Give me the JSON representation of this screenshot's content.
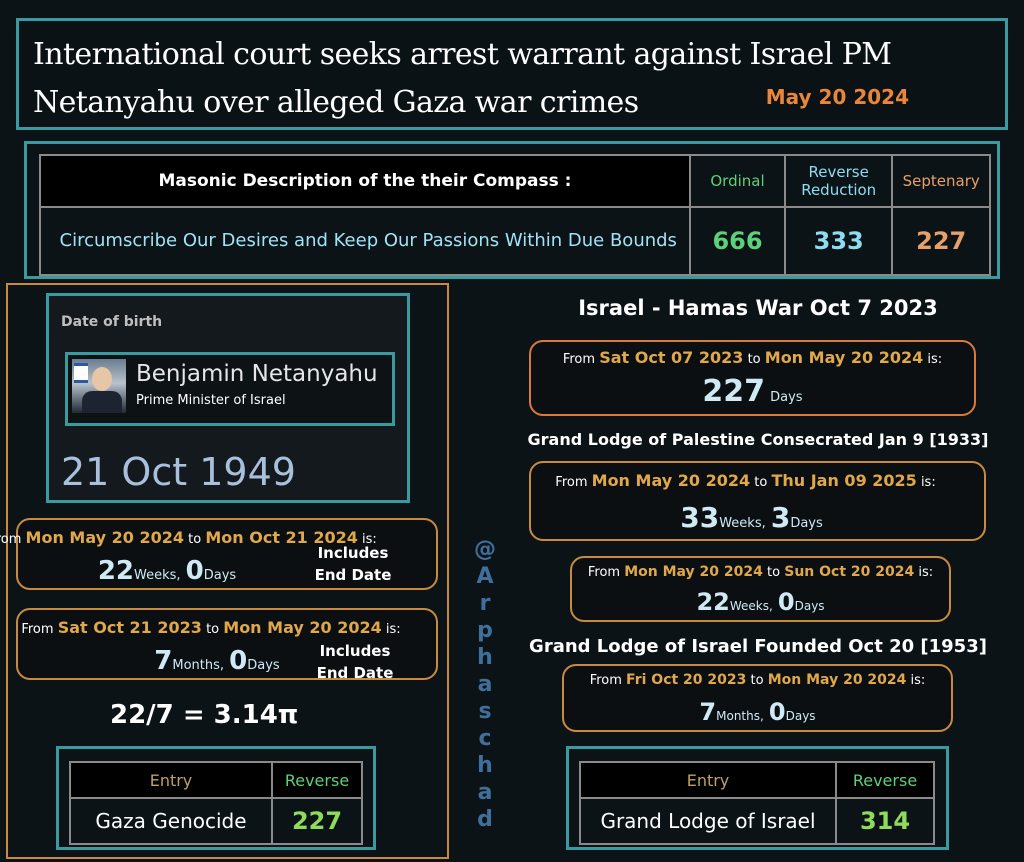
{
  "headline": {
    "title": "International court seeks arrest warrant against Israel PM Netanyahu over alleged Gaza war crimes",
    "date": "May 20 2024"
  },
  "masonic": {
    "heading": "Masonic Description of the their Compass :",
    "col_ordinal": "Ordinal",
    "col_reverse": "Reverse Reduction",
    "col_septenary": "Septenary",
    "phrase": "Circumscribe Our Desires and Keep Our Passions Within Due Bounds",
    "ordinal": "666",
    "reverse": "333",
    "septenary": "227"
  },
  "dob": {
    "label": "Date of birth",
    "name": "Benjamin Netanyahu",
    "role": "Prime Minister of Israel",
    "date": "21 Oct 1949"
  },
  "left_calcs": [
    {
      "from": "From",
      "d1": "Mon May 20 2024",
      "to": "to",
      "d2": "Mon Oct 21 2024",
      "is": "is:",
      "n1": "22",
      "u1": "Weeks,",
      "n2": "0",
      "u2": "Days",
      "note1": "Includes",
      "note2": "End Date"
    },
    {
      "from": "From",
      "d1": "Sat Oct 21 2023",
      "to": "to",
      "d2": "Mon May 20 2024",
      "is": "is:",
      "n1": "7",
      "u1": "Months,",
      "n2": "0",
      "u2": "Days",
      "note1": "Includes",
      "note2": "End Date"
    }
  ],
  "pi_text": "22/7 = 3.14π",
  "left_table": {
    "entry_h": "Entry",
    "reverse_h": "Reverse",
    "entry": "Gaza Genocide",
    "value": "227"
  },
  "vertical_handle": [
    "@",
    "A",
    "r",
    "p",
    "h",
    "a",
    "s",
    "c",
    "h",
    "a",
    "d"
  ],
  "right": {
    "war_title": "Israel - Hamas War Oct 7 2023",
    "war_calc": {
      "from": "From",
      "d1": "Sat Oct 07 2023",
      "to": "to",
      "d2": "Mon May 20 2024",
      "is": "is:",
      "n1": "227",
      "u1": "Days"
    },
    "lodge_pal_title": "Grand Lodge of Palestine Consecrated Jan 9 [1933]",
    "lodge_pal_calc": {
      "from": "From",
      "d1": "Mon May 20 2024",
      "to": "to",
      "d2": "Thu Jan 09 2025",
      "is": "is:",
      "n1": "33",
      "u1": "Weeks,",
      "n2": "3",
      "u2": "Days"
    },
    "extra_calc": {
      "from": "From",
      "d1": "Mon May 20 2024",
      "to": "to",
      "d2": "Sun Oct 20 2024",
      "is": "is:",
      "n1": "22",
      "u1": "Weeks,",
      "n2": "0",
      "u2": "Days"
    },
    "lodge_isr_title": "Grand Lodge of Israel Founded Oct 20 [1953]",
    "lodge_isr_calc": {
      "from": "From",
      "d1": "Fri Oct 20 2023",
      "to": "to",
      "d2": "Mon May 20 2024",
      "is": "is:",
      "n1": "7",
      "u1": "Months,",
      "n2": "0",
      "u2": "Days"
    },
    "table": {
      "entry_h": "Entry",
      "reverse_h": "Reverse",
      "entry": "Grand Lodge of Israel",
      "value": "314"
    }
  }
}
